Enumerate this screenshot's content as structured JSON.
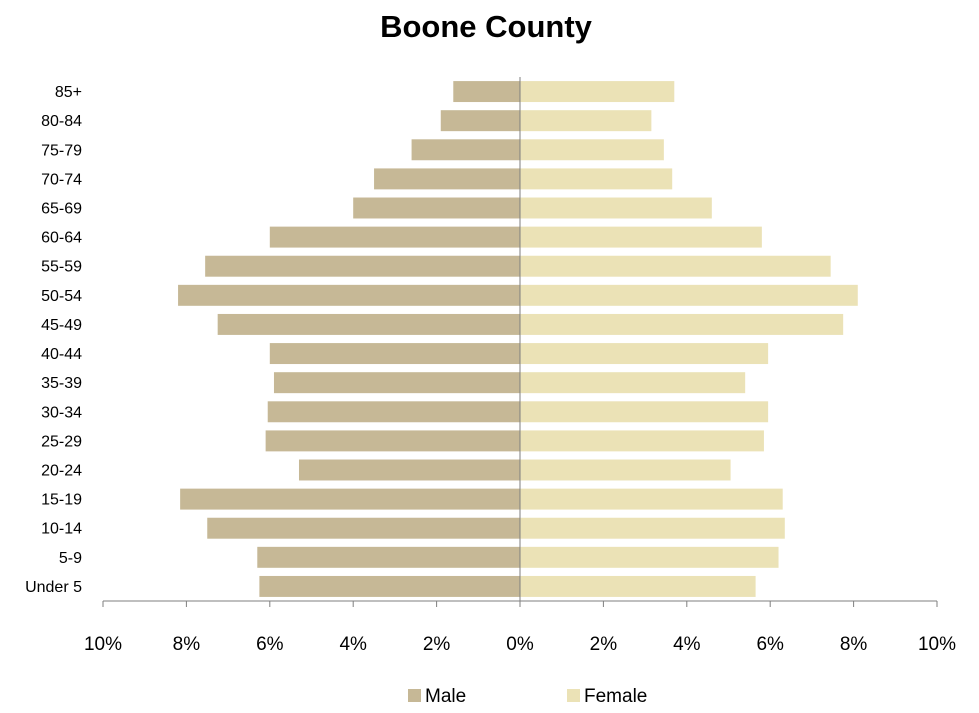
{
  "chart_data": {
    "type": "bar",
    "orientation": "horizontal",
    "layout": "population-pyramid",
    "title": "Boone County",
    "categories": [
      "85+",
      "80-84",
      "75-79",
      "70-74",
      "65-69",
      "60-64",
      "55-59",
      "50-54",
      "45-49",
      "40-44",
      "35-39",
      "30-34",
      "25-29",
      "20-24",
      "15-19",
      "10-14",
      "5-9",
      "Under 5"
    ],
    "series": [
      {
        "name": "Male",
        "color": "#c6b896",
        "side": "left",
        "values": [
          1.6,
          1.9,
          2.6,
          3.5,
          4.0,
          6.0,
          7.55,
          8.2,
          7.25,
          6.0,
          5.9,
          6.05,
          6.1,
          5.3,
          8.15,
          7.5,
          6.3,
          6.25
        ]
      },
      {
        "name": "Female",
        "color": "#ebe2b6",
        "side": "right",
        "values": [
          3.7,
          3.15,
          3.45,
          3.65,
          4.6,
          5.8,
          7.45,
          8.1,
          7.75,
          5.95,
          5.4,
          5.95,
          5.85,
          5.05,
          6.3,
          6.35,
          6.2,
          5.65
        ]
      }
    ],
    "xlim": [
      -10,
      10
    ],
    "x_ticks": [
      "10%",
      "8%",
      "6%",
      "4%",
      "2%",
      "0%",
      "2%",
      "4%",
      "6%",
      "8%",
      "10%"
    ],
    "x_tick_values": [
      -10,
      -8,
      -6,
      -4,
      -2,
      0,
      2,
      4,
      6,
      8,
      10
    ],
    "xlabel": "",
    "ylabel": "",
    "grid": false,
    "legend_position": "bottom"
  }
}
